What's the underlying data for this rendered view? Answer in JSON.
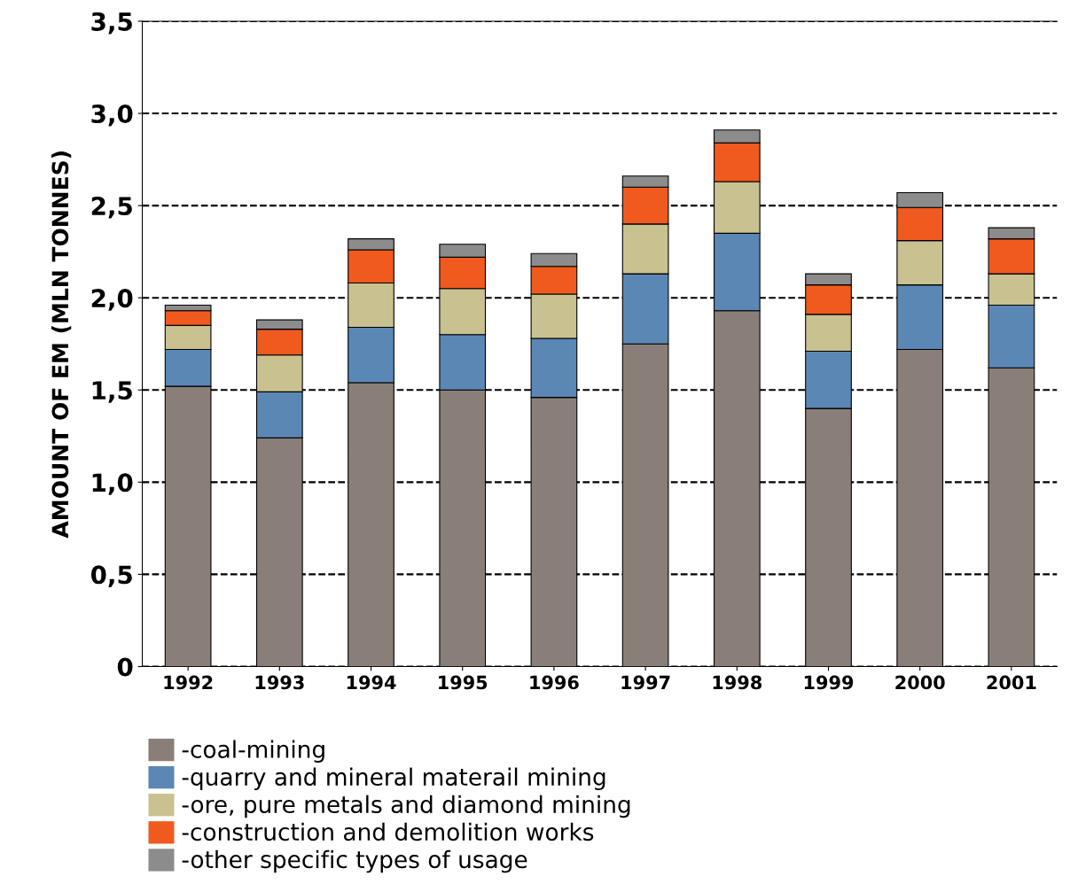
{
  "chart_data": {
    "type": "bar",
    "stacked": true,
    "ylabel": "AMOUNT OF EM (MLN TONNES)",
    "categories": [
      "1992",
      "1993",
      "1994",
      "1995",
      "1996",
      "1997",
      "1998",
      "1999",
      "2000",
      "2001"
    ],
    "series": [
      {
        "name": "-coal-mining",
        "color": "#8a7f78",
        "values": [
          1.52,
          1.24,
          1.54,
          1.5,
          1.46,
          1.75,
          1.93,
          1.4,
          1.72,
          1.62
        ]
      },
      {
        "name": "-quarry and mineral materail mining",
        "color": "#5b87b5",
        "values": [
          0.2,
          0.25,
          0.3,
          0.3,
          0.32,
          0.38,
          0.42,
          0.31,
          0.35,
          0.34
        ]
      },
      {
        "name": "-ore, pure metals and diamond mining",
        "color": "#c9c190",
        "values": [
          0.13,
          0.2,
          0.24,
          0.25,
          0.24,
          0.27,
          0.28,
          0.2,
          0.24,
          0.17
        ]
      },
      {
        "name": "-construction and demolition works",
        "color": "#f05a1e",
        "values": [
          0.08,
          0.14,
          0.18,
          0.17,
          0.15,
          0.2,
          0.21,
          0.16,
          0.18,
          0.19
        ]
      },
      {
        "name": "-other specific types of usage",
        "color": "#8c8c8c",
        "values": [
          0.03,
          0.05,
          0.06,
          0.07,
          0.07,
          0.06,
          0.07,
          0.06,
          0.08,
          0.06
        ]
      }
    ],
    "ylim": [
      0,
      3.5
    ],
    "yticks": [
      0,
      {
        "value": 0.5,
        "label": "0,5"
      },
      {
        "value": 1.0,
        "label": "1,0"
      },
      {
        "value": 1.5,
        "label": "1,5"
      },
      {
        "value": 2.0,
        "label": "2,0"
      },
      {
        "value": 2.5,
        "label": "2,5"
      },
      {
        "value": 3.0,
        "label": "3,0"
      },
      {
        "value": 3.5,
        "label": "3,5"
      }
    ],
    "grid": "y",
    "legend": "bottom left"
  }
}
